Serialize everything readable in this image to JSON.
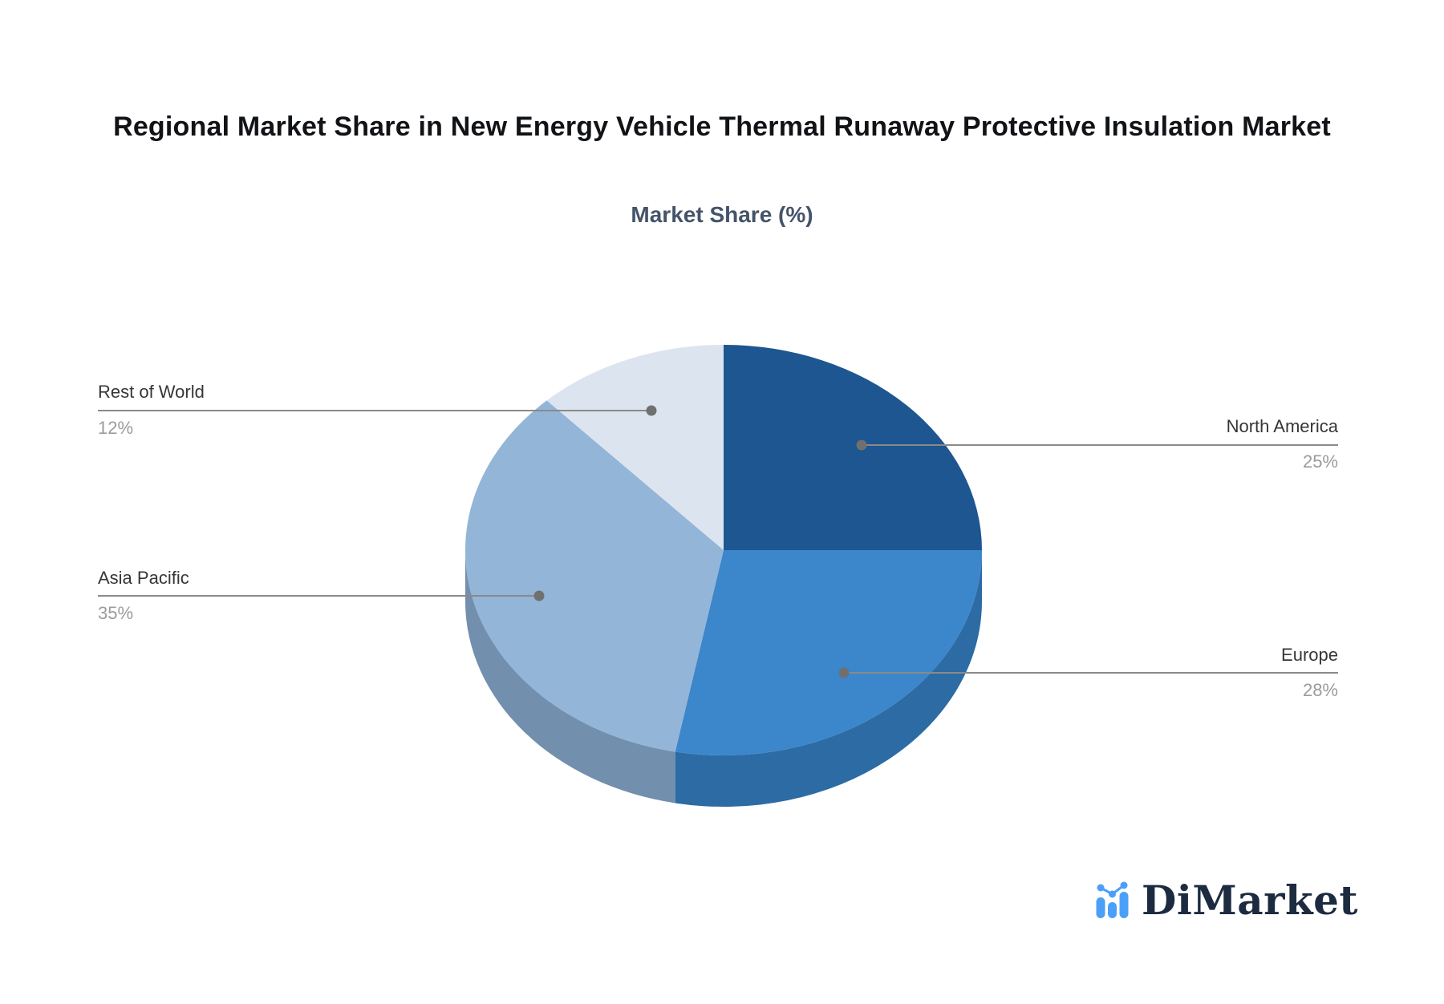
{
  "page": {
    "background": "#ffffff"
  },
  "header": {
    "title": "Regional Market Share in New Energy Vehicle Thermal Runaway Protective Insulation Market",
    "subtitle": "Market Share (%)"
  },
  "chart_data": {
    "type": "pie",
    "style": "3d",
    "title": "Regional Market Share in New Energy Vehicle Thermal Runaway Protective Insulation Market",
    "subtitle": "Market Share (%)",
    "unit": "%",
    "start_angle_deg": 0,
    "direction": "clockwise",
    "legend": "none",
    "categories": [
      "North America",
      "Europe",
      "Asia Pacific",
      "Rest of World"
    ],
    "values": [
      25,
      28,
      35,
      12
    ],
    "slices": [
      {
        "name": "North America",
        "value": 25,
        "pct_label": "25%",
        "color": "#1D5690",
        "side_color": "#174A7E"
      },
      {
        "name": "Europe",
        "value": 28,
        "pct_label": "28%",
        "color": "#3C86CB",
        "side_color": "#2C6BA4"
      },
      {
        "name": "Asia Pacific",
        "value": 35,
        "pct_label": "35%",
        "color": "#93B5D8",
        "side_color": "#728FAD"
      },
      {
        "name": "Rest of World",
        "value": 12,
        "pct_label": "12%",
        "color": "#DCE4EF",
        "side_color": "#B9C6D6"
      }
    ],
    "label_color": "#363636",
    "pct_color": "#9B9B9B",
    "leader_line_color": "#8A8A8A",
    "leader_dot_color": "#707070"
  },
  "branding": {
    "logo_text": "DiMarket",
    "logo_icon": "bar-line-chart-icon",
    "icon_color": "#4AA0F8",
    "text_color": "#1C2B40"
  }
}
